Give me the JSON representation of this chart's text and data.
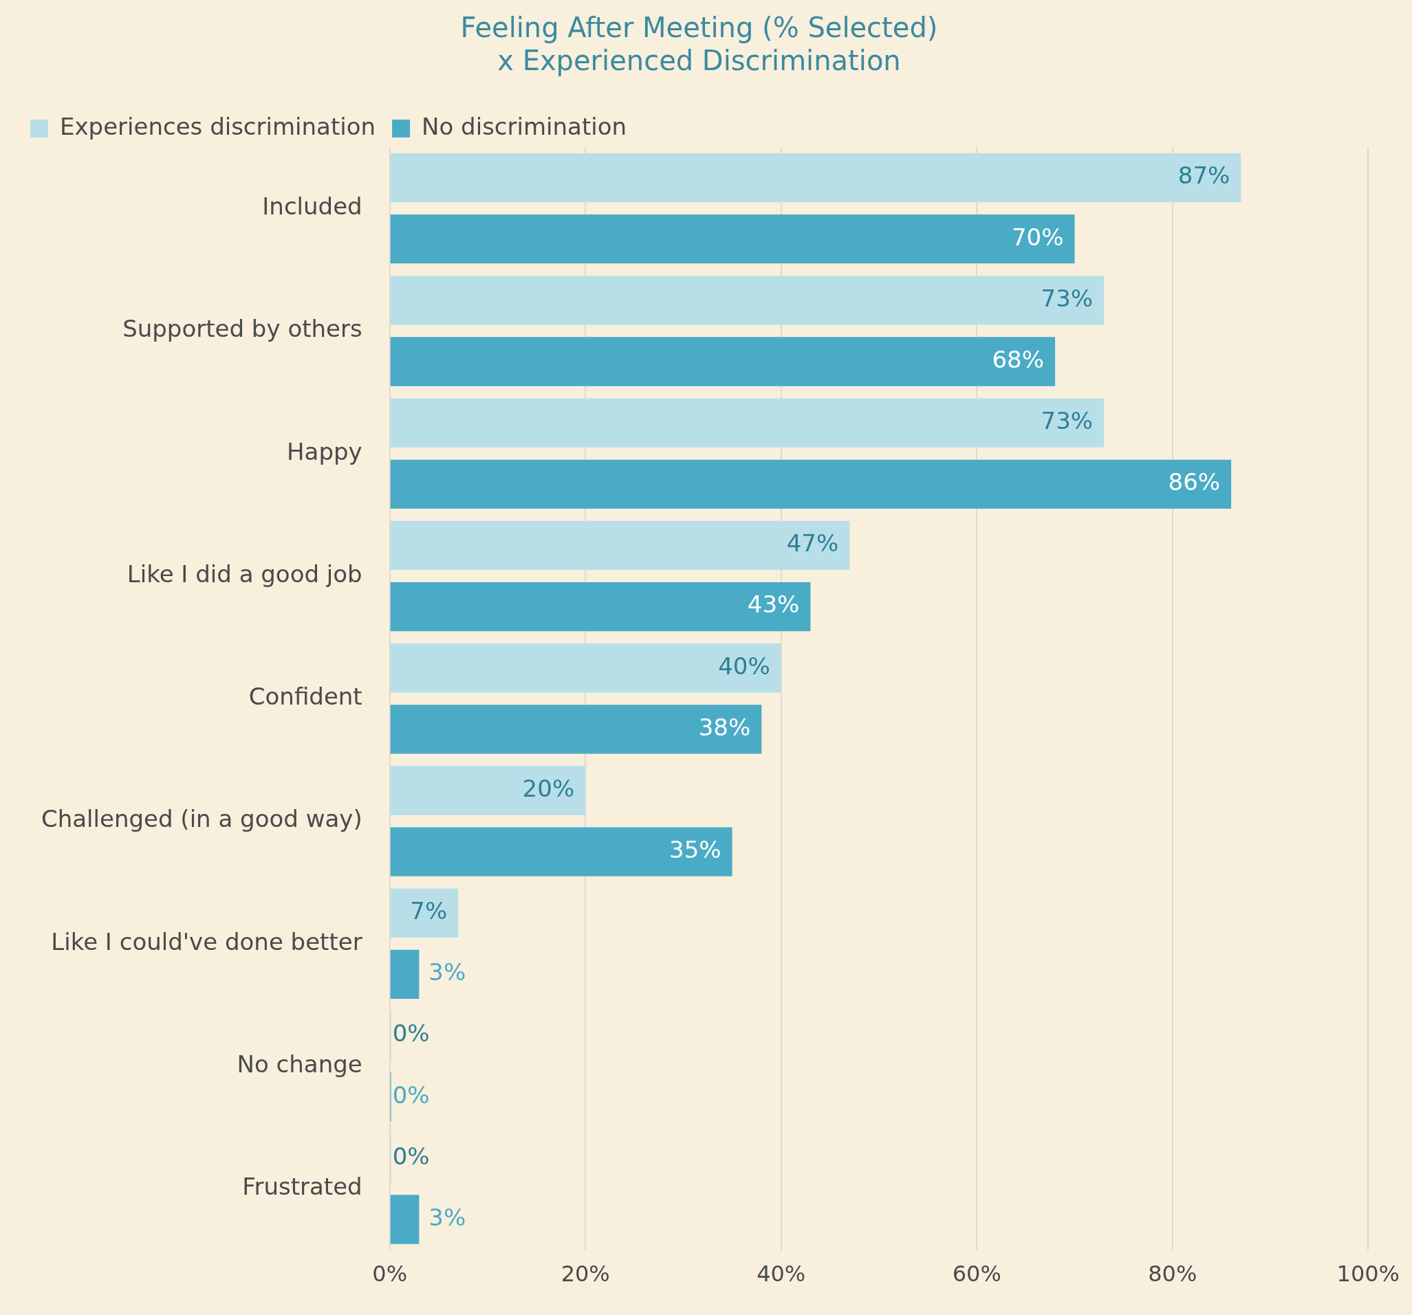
{
  "chart_data": {
    "type": "bar",
    "orientation": "horizontal",
    "title": "Feeling After Meeting (% Selected)\nx Experienced Discrimination",
    "categories": [
      "Included",
      "Supported by others",
      "Happy",
      "Like I did a good job",
      "Confident",
      "Challenged (in a good way)",
      "Like I could've done better",
      "No change",
      "Frustrated"
    ],
    "series": [
      {
        "name": "Experiences discrimination",
        "color": "#b8dfe8",
        "values": [
          87,
          73,
          73,
          47,
          40,
          20,
          7,
          0,
          0
        ],
        "value_labels": [
          "87%",
          "73%",
          "73%",
          "47%",
          "40%",
          "20%",
          "7%",
          "0%",
          "0%"
        ]
      },
      {
        "name": "No discrimination",
        "color": "#4aabc6",
        "values": [
          70,
          68,
          86,
          43,
          38,
          35,
          3,
          0,
          3
        ],
        "value_labels": [
          "70%",
          "68%",
          "86%",
          "43%",
          "38%",
          "35%",
          "3%",
          "0%",
          "3%"
        ]
      }
    ],
    "xlim": [
      0,
      100
    ],
    "xticks": [
      {
        "value": 0,
        "label": "0%"
      },
      {
        "value": 20,
        "label": "20%"
      },
      {
        "value": 40,
        "label": "40%"
      },
      {
        "value": 60,
        "label": "60%"
      },
      {
        "value": 80,
        "label": "80%"
      },
      {
        "value": 100,
        "label": "100%"
      }
    ],
    "grid": "x",
    "legend": "top left"
  }
}
